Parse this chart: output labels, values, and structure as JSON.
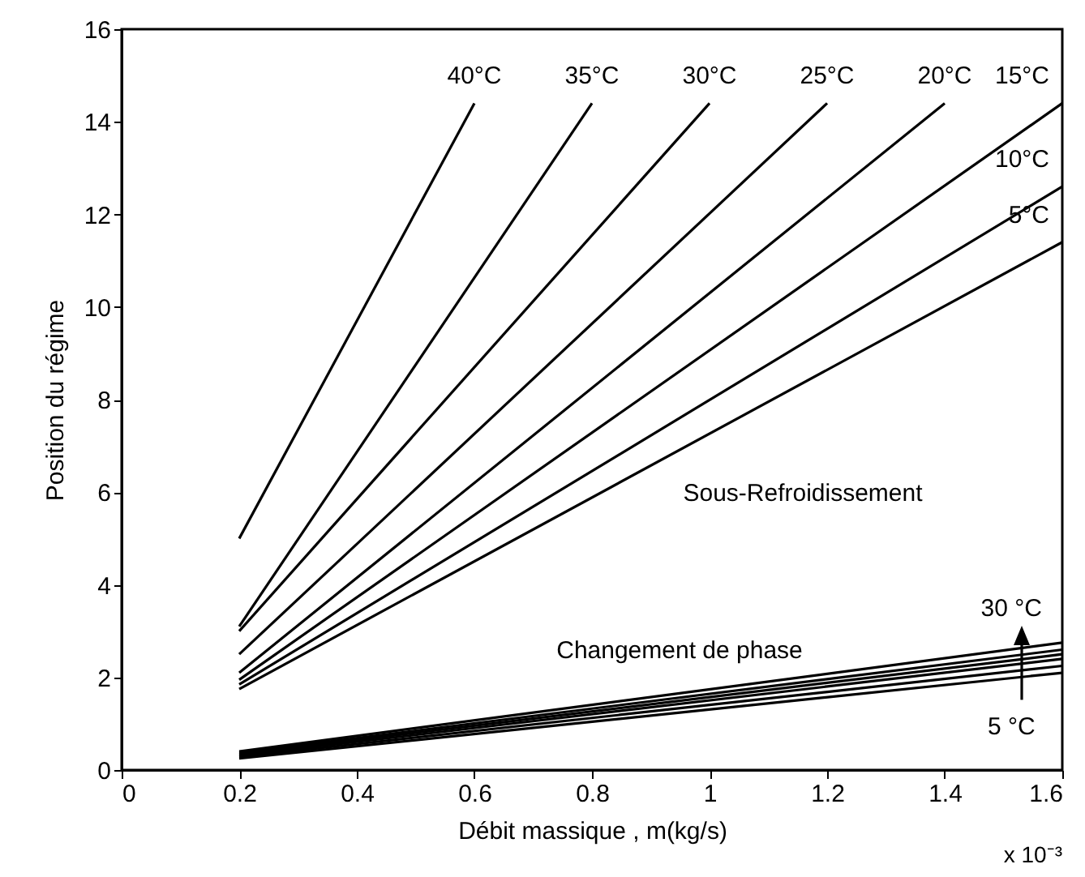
{
  "chart_data": {
    "type": "line",
    "xlabel": "Débit massique  , m(kg/s)",
    "ylabel": "Position du régime",
    "xlim": [
      0,
      1.6
    ],
    "xticks": [
      0,
      0.2,
      0.4,
      0.6,
      0.8,
      1,
      1.2,
      1.4,
      1.6
    ],
    "ylim": [
      0,
      16
    ],
    "yticks": [
      0,
      2,
      4,
      6,
      8,
      10,
      12,
      14,
      16
    ],
    "grid": false,
    "marker": "none",
    "line_style": "solid",
    "series": [
      {
        "name": "40°C",
        "color": "#000000",
        "x": [
          0.2,
          0.6
        ],
        "values": [
          5.0,
          14.4
        ]
      },
      {
        "name": "35°C",
        "color": "#000000",
        "x": [
          0.2,
          0.8
        ],
        "values": [
          3.1,
          14.4
        ]
      },
      {
        "name": "30°C",
        "color": "#000000",
        "x": [
          0.2,
          1.0
        ],
        "values": [
          3.0,
          14.4
        ]
      },
      {
        "name": "25°C",
        "color": "#000000",
        "x": [
          0.2,
          1.2
        ],
        "values": [
          2.5,
          14.4
        ]
      },
      {
        "name": "20°C",
        "color": "#000000",
        "x": [
          0.2,
          1.4
        ],
        "values": [
          2.1,
          14.4
        ]
      },
      {
        "name": "15°C",
        "color": "#000000",
        "x": [
          0.2,
          1.6
        ],
        "values": [
          1.95,
          14.4
        ]
      },
      {
        "name": "10°C",
        "color": "#000000",
        "x": [
          0.2,
          1.6
        ],
        "values": [
          1.85,
          12.6
        ]
      },
      {
        "name": "5°C",
        "color": "#000000",
        "x": [
          0.2,
          1.6
        ],
        "values": [
          1.75,
          11.4
        ]
      },
      {
        "color": "#000000",
        "x": [
          0.2,
          1.6
        ],
        "values": [
          0.25,
          2.1
        ]
      },
      {
        "color": "#000000",
        "x": [
          0.2,
          1.6
        ],
        "values": [
          0.28,
          2.25
        ]
      },
      {
        "color": "#000000",
        "x": [
          0.2,
          1.6
        ],
        "values": [
          0.31,
          2.4
        ]
      },
      {
        "color": "#000000",
        "x": [
          0.2,
          1.6
        ],
        "values": [
          0.34,
          2.5
        ]
      },
      {
        "color": "#000000",
        "x": [
          0.2,
          1.6
        ],
        "values": [
          0.37,
          2.6
        ]
      },
      {
        "color": "#000000",
        "x": [
          0.2,
          1.6
        ],
        "values": [
          0.4,
          2.75
        ]
      }
    ],
    "annotations": [
      "Sous-Refroidissement",
      "Changement de phase",
      {
        "text": "30 °C",
        "x": 1.53,
        "y": 2.63
      },
      {
        "text": "5 °C",
        "x": 1.53,
        "y": 2.01
      },
      "x 10⁻³"
    ]
  }
}
